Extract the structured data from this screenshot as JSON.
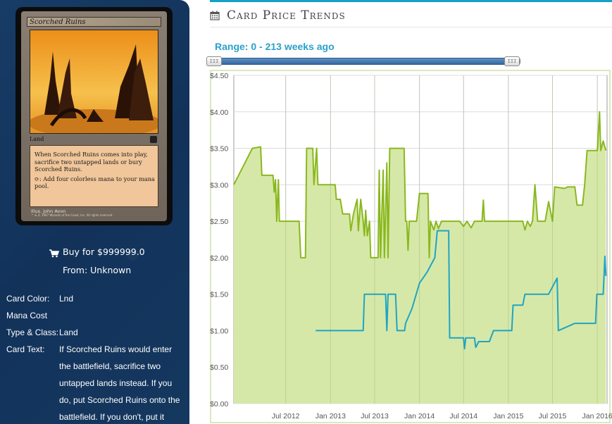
{
  "card": {
    "name": "Scorched Ruins",
    "type_line": "Land",
    "rules_text_1": "When Scorched Ruins comes into play, sacrifice two untapped lands or bury Scorched Ruins.",
    "rules_text_2": ": Add four colorless mana to your mana pool.",
    "illustrator": "Illus. John Avon",
    "legal": "™ & © 1997 Wizards of the Coast, Inc. All rights reserved."
  },
  "buy": {
    "price_label": "Buy for $999999.0",
    "from_label": "From: Unknown"
  },
  "details": [
    {
      "label": "Card Color:",
      "value": "Lnd"
    },
    {
      "label": "Mana Cost",
      "value": ""
    },
    {
      "label": "Type & Class:",
      "value": "Land"
    },
    {
      "label": "Card Text:",
      "value": "If Scorched Ruins would enter the battlefield, sacrifice two untapped lands instead. If you do, put Scorched Ruins onto the battlefield. If you don't, put it"
    }
  ],
  "section": {
    "title": "Card Price Trends",
    "icon": "calendar-icon"
  },
  "range_label": "Range: 0 - 213 weeks ago",
  "colors": {
    "accent": "#14a1c6",
    "range_text": "#2aa0c9",
    "green_line": "#8ab81e",
    "green_fill": "#d4e7a3",
    "blue_line": "#1ea5c4",
    "panel_bg": "#14365e"
  },
  "chart_data": {
    "type": "line",
    "title": "",
    "xlabel": "",
    "ylabel": "",
    "ylim": [
      0,
      4.5
    ],
    "yticks": [
      "$0.00",
      "$0.50",
      "$1.00",
      "$1.50",
      "$2.00",
      "$2.50",
      "$3.00",
      "$3.50",
      "$4.00",
      "$4.50"
    ],
    "xticks": [
      "Jul 2012",
      "Jan 2013",
      "Jul 2013",
      "Jan 2014",
      "Jul 2014",
      "Jan 2015",
      "Jul 2015",
      "Jan 2016"
    ],
    "xlim": [
      "2011-12-01",
      "2016-02-10"
    ],
    "grid": true,
    "series": [
      {
        "fill": true,
        "points": [
          [
            "2011-12-01",
            3.0
          ],
          [
            "2012-02-15",
            3.5
          ],
          [
            "2012-03-20",
            3.52
          ],
          [
            "2012-03-25",
            3.13
          ],
          [
            "2012-05-10",
            3.13
          ],
          [
            "2012-05-15",
            2.9
          ],
          [
            "2012-05-20",
            3.07
          ],
          [
            "2012-05-25",
            2.5
          ],
          [
            "2012-06-01",
            3.07
          ],
          [
            "2012-06-05",
            2.5
          ],
          [
            "2012-08-25",
            2.5
          ],
          [
            "2012-09-01",
            2.0
          ],
          [
            "2012-09-20",
            2.0
          ],
          [
            "2012-09-25",
            3.5
          ],
          [
            "2012-10-20",
            3.5
          ],
          [
            "2012-10-25",
            3.0
          ],
          [
            "2012-11-05",
            3.5
          ],
          [
            "2012-11-10",
            3.0
          ],
          [
            "2013-01-20",
            3.0
          ],
          [
            "2013-01-25",
            2.8
          ],
          [
            "2013-02-10",
            2.8
          ],
          [
            "2013-02-20",
            2.6
          ],
          [
            "2013-03-20",
            2.6
          ],
          [
            "2013-03-25",
            2.37
          ],
          [
            "2013-04-05",
            2.6
          ],
          [
            "2013-04-20",
            2.8
          ],
          [
            "2013-04-25",
            2.37
          ],
          [
            "2013-05-05",
            2.8
          ],
          [
            "2013-05-15",
            2.5
          ],
          [
            "2013-05-20",
            2.3
          ],
          [
            "2013-05-25",
            2.65
          ],
          [
            "2013-06-01",
            2.3
          ],
          [
            "2013-06-10",
            2.5
          ],
          [
            "2013-06-15",
            2.0
          ],
          [
            "2013-07-15",
            2.0
          ],
          [
            "2013-07-20",
            3.2
          ],
          [
            "2013-07-25",
            2.0
          ],
          [
            "2013-08-05",
            3.2
          ],
          [
            "2013-08-10",
            2.0
          ],
          [
            "2013-08-20",
            3.3
          ],
          [
            "2013-08-25",
            2.0
          ],
          [
            "2013-09-01",
            3.5
          ],
          [
            "2013-10-30",
            3.5
          ],
          [
            "2013-11-05",
            2.5
          ],
          [
            "2013-11-10",
            2.5
          ],
          [
            "2013-11-15",
            2.1
          ],
          [
            "2013-11-20",
            2.5
          ],
          [
            "2013-12-20",
            2.5
          ],
          [
            "2014-01-01",
            2.88
          ],
          [
            "2014-02-05",
            2.88
          ],
          [
            "2014-02-10",
            2.0
          ],
          [
            "2014-02-15",
            2.5
          ],
          [
            "2014-03-01",
            2.38
          ],
          [
            "2014-03-10",
            2.5
          ],
          [
            "2014-03-20",
            2.4
          ],
          [
            "2014-04-01",
            2.5
          ],
          [
            "2014-06-15",
            2.5
          ],
          [
            "2014-07-01",
            2.43
          ],
          [
            "2014-07-15",
            2.5
          ],
          [
            "2014-08-01",
            2.41
          ],
          [
            "2014-08-15",
            2.5
          ],
          [
            "2014-09-15",
            2.5
          ],
          [
            "2014-09-20",
            2.79
          ],
          [
            "2014-09-25",
            2.5
          ],
          [
            "2014-12-15",
            2.5
          ],
          [
            "2015-01-01",
            2.5
          ],
          [
            "2015-03-01",
            2.5
          ],
          [
            "2015-03-10",
            2.38
          ],
          [
            "2015-03-20",
            2.5
          ],
          [
            "2015-04-01",
            2.43
          ],
          [
            "2015-04-10",
            2.5
          ],
          [
            "2015-04-20",
            3.0
          ],
          [
            "2015-05-01",
            2.5
          ],
          [
            "2015-05-15",
            2.5
          ],
          [
            "2015-06-01",
            2.5
          ],
          [
            "2015-06-15",
            2.77
          ],
          [
            "2015-07-01",
            2.5
          ],
          [
            "2015-07-10",
            2.97
          ],
          [
            "2015-08-20",
            2.95
          ],
          [
            "2015-09-01",
            2.97
          ],
          [
            "2015-10-01",
            2.97
          ],
          [
            "2015-10-10",
            2.72
          ],
          [
            "2015-11-01",
            2.72
          ],
          [
            "2015-11-10",
            3.0
          ],
          [
            "2015-11-20",
            3.47
          ],
          [
            "2016-01-01",
            3.47
          ],
          [
            "2016-01-10",
            4.0
          ],
          [
            "2016-01-15",
            3.47
          ],
          [
            "2016-01-25",
            3.6
          ],
          [
            "2016-02-05",
            3.47
          ]
        ]
      },
      {
        "fill": false,
        "points": [
          [
            "2012-11-01",
            1.0
          ],
          [
            "2013-05-15",
            1.0
          ],
          [
            "2013-05-20",
            1.5
          ],
          [
            "2013-08-15",
            1.5
          ],
          [
            "2013-08-20",
            1.0
          ],
          [
            "2013-08-25",
            1.5
          ],
          [
            "2013-09-25",
            1.5
          ],
          [
            "2013-10-01",
            1.0
          ],
          [
            "2013-11-01",
            1.0
          ],
          [
            "2013-11-05",
            1.1
          ],
          [
            "2013-12-01",
            1.3
          ],
          [
            "2014-01-01",
            1.65
          ],
          [
            "2014-02-01",
            1.8
          ],
          [
            "2014-03-05",
            2.0
          ],
          [
            "2014-03-15",
            2.37
          ],
          [
            "2014-04-15",
            2.37
          ],
          [
            "2014-05-01",
            2.37
          ],
          [
            "2014-05-05",
            0.9
          ],
          [
            "2014-07-01",
            0.9
          ],
          [
            "2014-07-05",
            0.75
          ],
          [
            "2014-07-10",
            0.9
          ],
          [
            "2014-08-15",
            0.9
          ],
          [
            "2014-08-20",
            0.77
          ],
          [
            "2014-09-01",
            0.85
          ],
          [
            "2014-10-15",
            0.85
          ],
          [
            "2014-11-01",
            1.0
          ],
          [
            "2015-01-15",
            1.0
          ],
          [
            "2015-01-20",
            1.35
          ],
          [
            "2015-03-01",
            1.35
          ],
          [
            "2015-03-10",
            1.5
          ],
          [
            "2015-06-15",
            1.5
          ],
          [
            "2015-07-20",
            1.72
          ],
          [
            "2015-07-25",
            1.0
          ],
          [
            "2015-10-01",
            1.1
          ],
          [
            "2015-12-25",
            1.1
          ],
          [
            "2015-12-30",
            1.5
          ],
          [
            "2016-01-25",
            1.5
          ],
          [
            "2016-02-01",
            2.02
          ],
          [
            "2016-02-05",
            1.75
          ]
        ]
      }
    ]
  }
}
